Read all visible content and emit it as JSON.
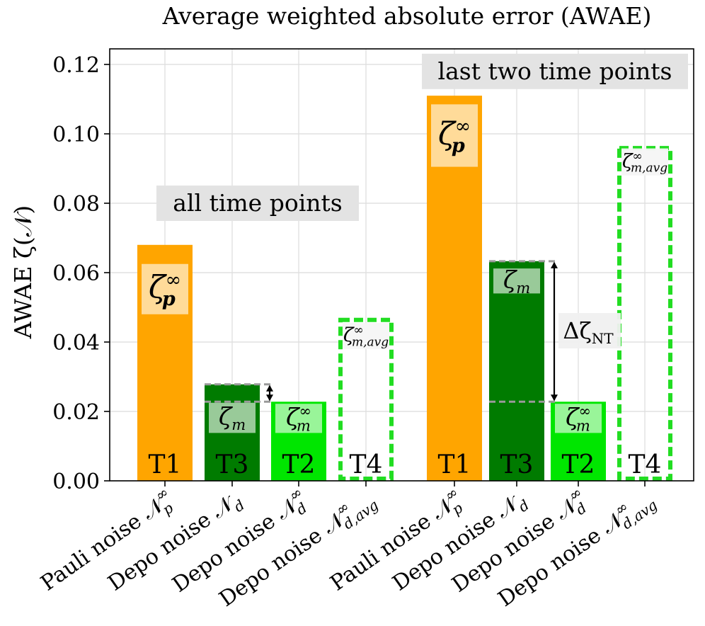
{
  "chart_data": {
    "type": "bar",
    "title": "Average weighted absolute error (AWAE)",
    "ylabel": "AWAE ζ(𝒩)",
    "ylim": [
      0,
      0.125
    ],
    "yticks": [
      0.0,
      0.02,
      0.04,
      0.06,
      0.08,
      0.1,
      0.12
    ],
    "ytick_labels": [
      "0.00",
      "0.02",
      "0.04",
      "0.06",
      "0.08",
      "0.10",
      "0.12"
    ],
    "grid": true,
    "categories": [
      {
        "pre": "Pauli noise 𝒩",
        "sub": "p",
        "sup": "∞"
      },
      {
        "pre": "Depo noise 𝒩",
        "sub": "d",
        "sup": ""
      },
      {
        "pre": "Depo noise 𝒩",
        "sub": "d",
        "sup": "∞"
      },
      {
        "pre": "Depo noise 𝒩",
        "sub": "d,avg",
        "sup": "∞"
      },
      {
        "pre": "Pauli noise 𝒩",
        "sub": "p",
        "sup": "∞"
      },
      {
        "pre": "Depo noise 𝒩",
        "sub": "d",
        "sup": ""
      },
      {
        "pre": "Depo noise 𝒩",
        "sub": "d",
        "sup": "∞"
      },
      {
        "pre": "Depo noise 𝒩",
        "sub": "d,avg",
        "sup": "∞"
      }
    ],
    "groups": [
      {
        "label": "all time points",
        "label_pos": 0.08
      },
      {
        "label": "last two time points",
        "label_pos": 0.118
      }
    ],
    "bars": [
      {
        "group": 0,
        "tag": "T1",
        "value": 0.068,
        "style": "orange",
        "box": {
          "sym": "ζ",
          "sub": "p",
          "sup": "∞",
          "top": 0.0625,
          "bottom": 0.048
        }
      },
      {
        "group": 0,
        "tag": "T3",
        "value": 0.0278,
        "style": "darkgreen",
        "box": {
          "sym": "ζ",
          "sub": "m",
          "sup": "",
          "top": 0.0225,
          "bottom": 0.0138
        }
      },
      {
        "group": 0,
        "tag": "T2",
        "value": 0.0228,
        "style": "green",
        "box": {
          "sym": "ζ",
          "sub": "m",
          "sup": "∞",
          "top": 0.0222,
          "bottom": 0.0138
        }
      },
      {
        "group": 0,
        "tag": "T4",
        "value": 0.047,
        "style": "dashed",
        "box": {
          "sym": "ζ",
          "sub": "m,avg",
          "sup": "∞",
          "top": 0.0455,
          "bottom": 0.038
        }
      },
      {
        "group": 1,
        "tag": "T1",
        "value": 0.111,
        "style": "orange",
        "box": {
          "sym": "ζ",
          "sub": "p",
          "sup": "∞",
          "top": 0.1085,
          "bottom": 0.0905
        }
      },
      {
        "group": 1,
        "tag": "T3",
        "value": 0.0633,
        "style": "darkgreen",
        "box": {
          "sym": "ζ",
          "sub": "m",
          "sup": "",
          "top": 0.0612,
          "bottom": 0.054
        }
      },
      {
        "group": 1,
        "tag": "T2",
        "value": 0.0228,
        "style": "green",
        "box": {
          "sym": "ζ",
          "sub": "m",
          "sup": "∞",
          "top": 0.0222,
          "bottom": 0.0138
        }
      },
      {
        "group": 1,
        "tag": "T4",
        "value": 0.0965,
        "style": "dashed",
        "box": {
          "sym": "ζ",
          "sub": "m,avg",
          "sup": "∞",
          "top": 0.0958,
          "bottom": 0.088
        }
      }
    ],
    "gap_markers": [
      {
        "from_bar": 1,
        "upper": 0.0278,
        "lower": 0.0228,
        "label": ""
      },
      {
        "from_bar": 5,
        "upper": 0.0633,
        "lower": 0.0228,
        "label": "Δζ",
        "label_sub": "NT"
      }
    ],
    "colors": {
      "orange": "#ffa500",
      "darkgreen": "#007b00",
      "green": "#00e600",
      "dashed": "#22dd22",
      "grid": "#e0e0e0",
      "dashline": "#9a9a9a",
      "labelbg": "#e3e3e3"
    }
  }
}
